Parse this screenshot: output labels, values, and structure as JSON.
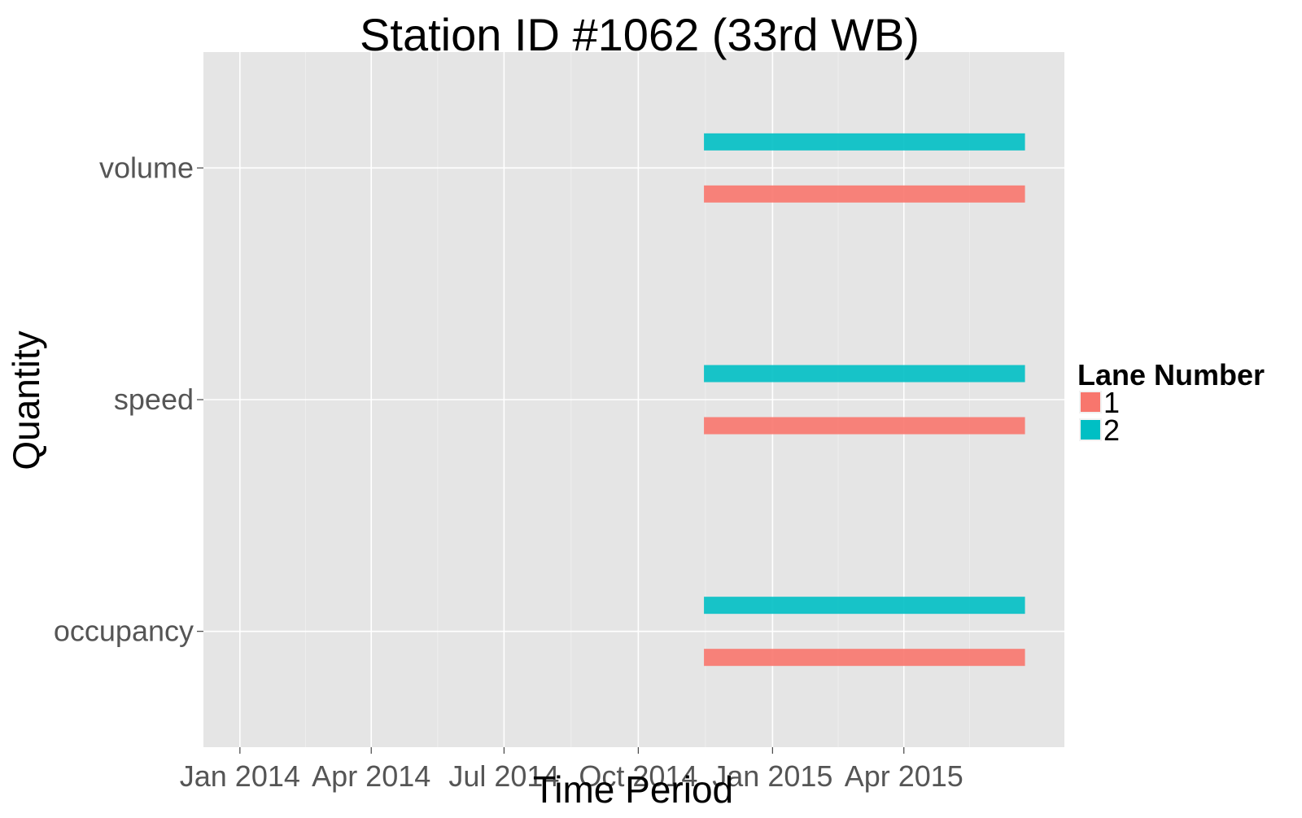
{
  "chart_data": {
    "type": "bar",
    "orientation": "horizontal-ranges",
    "title": "Station ID #1062 (33rd WB)",
    "xlabel": "Time Period",
    "ylabel": "Quantity",
    "x_axis": {
      "type": "date",
      "ticks": [
        "2014-01-01",
        "2014-04-01",
        "2014-07-01",
        "2014-10-01",
        "2015-01-01",
        "2015-04-01"
      ],
      "tick_labels": [
        "Jan 2014",
        "Apr 2014",
        "Jul 2014",
        "Oct 2014",
        "Jan 2015",
        "Apr 2015"
      ],
      "range": [
        "2013-12-07",
        "2015-07-20"
      ]
    },
    "categories": [
      "volume",
      "speed",
      "occupancy"
    ],
    "legend": {
      "title": "Lane Number",
      "position": "right",
      "entries": [
        {
          "label": "1",
          "color": "#F8766D"
        },
        {
          "label": "2",
          "color": "#00BFC4"
        }
      ]
    },
    "series": [
      {
        "name": "1",
        "color": "#F8766D",
        "ranges": [
          {
            "category": "volume",
            "start": "2014-11-15",
            "end": "2015-06-23"
          },
          {
            "category": "speed",
            "start": "2014-11-15",
            "end": "2015-06-23"
          },
          {
            "category": "occupancy",
            "start": "2014-11-15",
            "end": "2015-06-23"
          }
        ]
      },
      {
        "name": "2",
        "color": "#00BFC4",
        "ranges": [
          {
            "category": "volume",
            "start": "2014-11-15",
            "end": "2015-06-23"
          },
          {
            "category": "speed",
            "start": "2014-11-15",
            "end": "2015-06-23"
          },
          {
            "category": "occupancy",
            "start": "2014-11-15",
            "end": "2015-06-23"
          }
        ]
      }
    ],
    "grid": true,
    "panel_background": "#E5E5E5",
    "grid_color": "#FFFFFF"
  }
}
